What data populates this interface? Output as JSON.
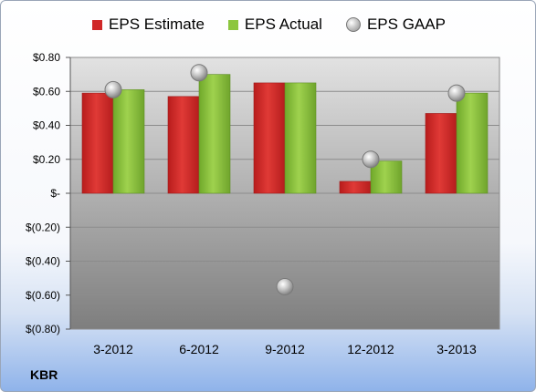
{
  "chart_data": {
    "type": "bar",
    "categories": [
      "3-2012",
      "6-2012",
      "9-2012",
      "12-2012",
      "3-2013"
    ],
    "series": [
      {
        "name": "EPS Estimate",
        "values": [
          0.59,
          0.57,
          0.65,
          0.07,
          0.47
        ],
        "color": "#d02828",
        "kind": "bar"
      },
      {
        "name": "EPS Actual",
        "values": [
          0.61,
          0.7,
          0.65,
          0.19,
          0.59
        ],
        "color": "#8cc63e",
        "kind": "bar"
      },
      {
        "name": "EPS GAAP",
        "values": [
          0.61,
          0.71,
          -0.55,
          0.2,
          0.59
        ],
        "color": "#b8b8b8",
        "kind": "marker"
      }
    ],
    "ylim": [
      -0.8,
      0.8
    ],
    "yticks": [
      0.8,
      0.6,
      0.4,
      0.2,
      0,
      -0.2,
      -0.4,
      -0.6,
      -0.8
    ],
    "ytick_labels": [
      "$0.80",
      "$0.60",
      "$0.40",
      "$0.20",
      "$-",
      "$(0.20)",
      "$(0.40)",
      "$(0.60)",
      "$(0.80)"
    ],
    "grid": true,
    "legend_position": "top",
    "label": "KBR"
  }
}
